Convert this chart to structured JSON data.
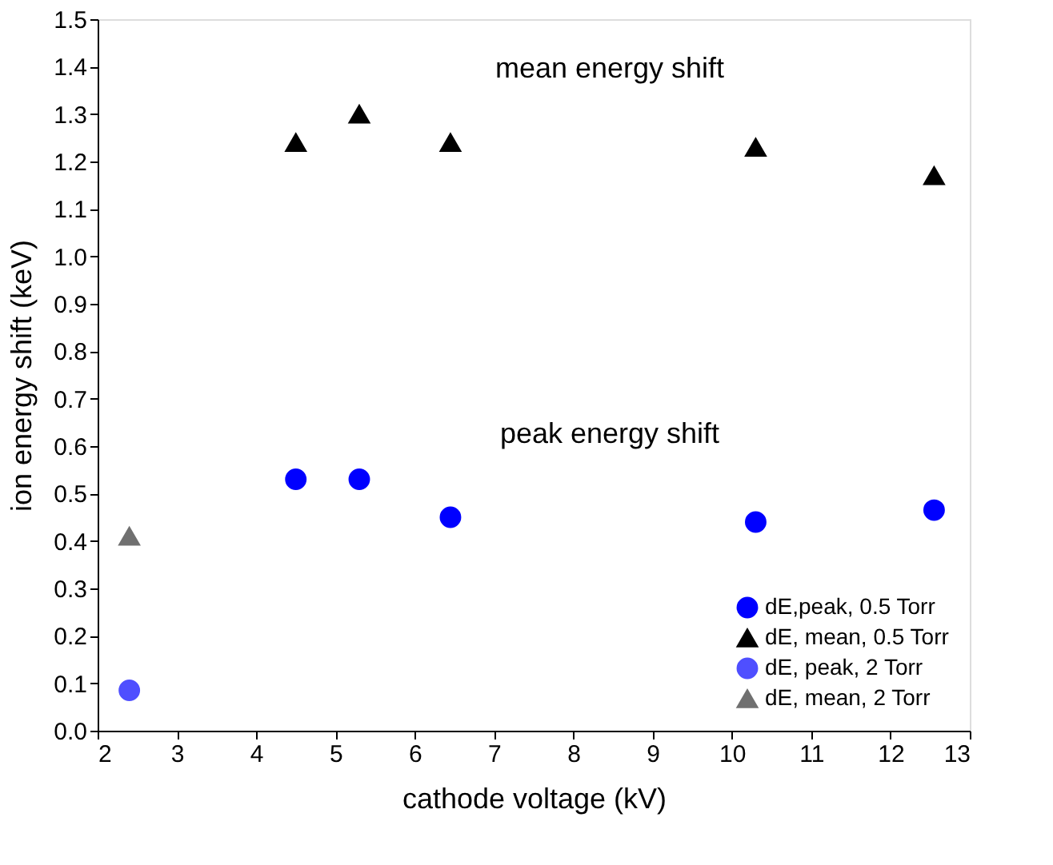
{
  "chart_data": {
    "type": "scatter",
    "xlabel": "cathode voltage (kV)",
    "ylabel": "ion energy shift (keV)",
    "xlim": [
      2,
      13
    ],
    "xticks": [
      2,
      3,
      4,
      5,
      6,
      7,
      8,
      9,
      10,
      11,
      12,
      13
    ],
    "ylim": [
      0,
      1.5
    ],
    "yticks": [
      {
        "value": 0,
        "label": "0.0"
      },
      0.1,
      0.2,
      0.3,
      0.4,
      0.5,
      0.6,
      0.7,
      0.8,
      0.9,
      {
        "value": 1,
        "label": "1.0"
      },
      1.1,
      1.2,
      1.3,
      1.4,
      1.5
    ],
    "grid": false,
    "legend": "bottom right",
    "annotations": [
      "mean energy shift",
      "peak energy shift"
    ],
    "series": [
      {
        "name": "dE,peak, 0.5 Torr",
        "color": "#0000ff",
        "marker": "circle",
        "x": [
          4.5,
          5.3,
          6.45,
          10.3,
          12.55
        ],
        "values": [
          0.53,
          0.53,
          0.45,
          0.44,
          0.465
        ]
      },
      {
        "name": "dE, mean, 0.5 Torr",
        "color": "#000000",
        "marker": "triangle",
        "x": [
          4.5,
          5.3,
          6.45,
          10.3,
          12.55
        ],
        "values": [
          1.24,
          1.3,
          1.24,
          1.23,
          1.17
        ]
      },
      {
        "name": "dE, peak, 2 Torr",
        "color": "#4f4fff",
        "marker": "circle",
        "x": [
          2.4
        ],
        "values": [
          0.085
        ]
      },
      {
        "name": "dE, mean, 2 Torr",
        "color": "#707070",
        "marker": "triangle",
        "x": [
          2.4
        ],
        "values": [
          0.41
        ]
      }
    ]
  }
}
